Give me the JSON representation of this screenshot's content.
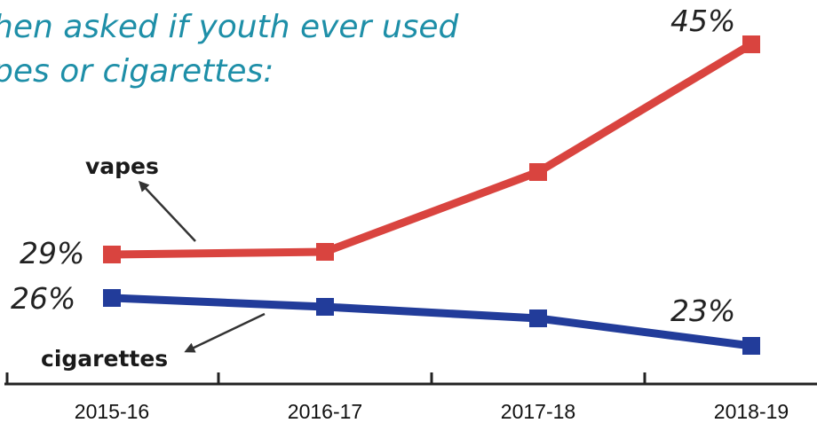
{
  "chart_data": {
    "type": "line",
    "title_lines": [
      "hen asked if youth ever used",
      "pes or cigarettes:"
    ],
    "categories": [
      "2015-16",
      "2016-17",
      "2017-18",
      "2018-19"
    ],
    "ylim": [
      15,
      50
    ],
    "grid": false,
    "series": [
      {
        "name": "vapes",
        "values": [
          29,
          29.3,
          36,
          45
        ],
        "color": "#d9443f",
        "labels": {
          "start": "29%",
          "end": "45%"
        }
      },
      {
        "name": "cigarettes",
        "values": [
          26,
          25.5,
          24.6,
          23
        ],
        "color": "#223c9a",
        "labels": {
          "start": "26%",
          "end": "23%"
        }
      }
    ]
  }
}
